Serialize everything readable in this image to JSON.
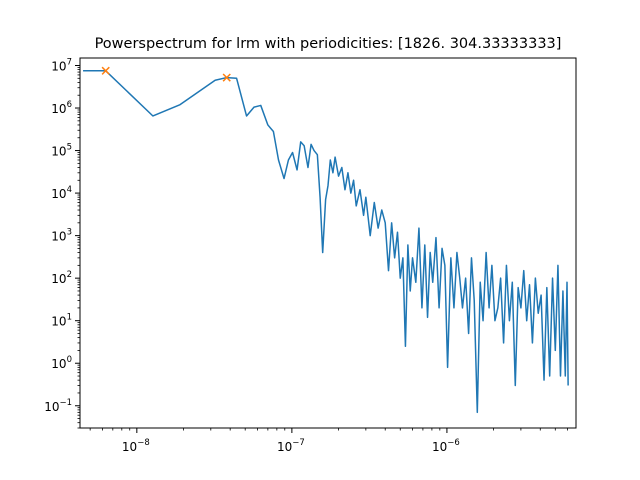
{
  "chart_data": {
    "type": "line",
    "title": "Powerspectrum for lrm with periodicities: [1826.          304.33333333]",
    "xlabel": "",
    "ylabel": "",
    "xscale": "log",
    "yscale": "log",
    "xlim": [
      4.3e-09,
      6.8e-06
    ],
    "ylim": [
      0.03,
      15000000.0
    ],
    "grid": false,
    "x_ticks": [
      {
        "base": "10",
        "exp": "−8",
        "value": 1e-08
      },
      {
        "base": "10",
        "exp": "−7",
        "value": 1e-07
      },
      {
        "base": "10",
        "exp": "−6",
        "value": 1e-06
      }
    ],
    "y_ticks": [
      {
        "base": "10",
        "exp": "7",
        "value": 10000000.0
      },
      {
        "base": "10",
        "exp": "6",
        "value": 1000000.0
      },
      {
        "base": "10",
        "exp": "5",
        "value": 100000.0
      },
      {
        "base": "10",
        "exp": "4",
        "value": 10000.0
      },
      {
        "base": "10",
        "exp": "3",
        "value": 1000.0
      },
      {
        "base": "10",
        "exp": "2",
        "value": 100.0
      },
      {
        "base": "10",
        "exp": "1",
        "value": 10.0
      },
      {
        "base": "10",
        "exp": "0",
        "value": 1
      },
      {
        "base": "10",
        "exp": "−1",
        "value": 0.1
      }
    ],
    "series": [
      {
        "color": "#1f77b4",
        "x": [
          4.5e-09,
          6.3e-09,
          1.27e-08,
          1.9e-08,
          3.2e-08,
          3.8e-08,
          4.4e-08,
          5.1e-08,
          5.7e-08,
          6.3e-08,
          7e-08,
          7.6e-08,
          8.2e-08,
          8.9e-08,
          9.5e-08,
          1.01e-07,
          1.08e-07,
          1.14e-07,
          1.2e-07,
          1.27e-07,
          1.33e-07,
          1.39e-07,
          1.46e-07,
          1.52e-07,
          1.58e-07,
          1.65e-07,
          1.71e-07,
          1.77e-07,
          1.84e-07,
          1.9e-07,
          2e-07,
          2.1e-07,
          2.2e-07,
          2.3e-07,
          2.4e-07,
          2.5e-07,
          2.6e-07,
          2.75e-07,
          2.9e-07,
          3e-07,
          3.2e-07,
          3.4e-07,
          3.6e-07,
          3.8e-07,
          4e-07,
          4.2e-07,
          4.4e-07,
          4.6e-07,
          4.8e-07,
          5e-07,
          5.2e-07,
          5.4e-07,
          5.6e-07,
          5.8e-07,
          6e-07,
          6.3e-07,
          6.6e-07,
          6.9e-07,
          7.2e-07,
          7.5e-07,
          7.8e-07,
          8.1e-07,
          8.5e-07,
          8.9e-07,
          9.3e-07,
          9.7e-07,
          1.01e-06,
          1.06e-06,
          1.11e-06,
          1.16e-06,
          1.21e-06,
          1.26e-06,
          1.32e-06,
          1.38e-06,
          1.44e-06,
          1.5e-06,
          1.57e-06,
          1.64e-06,
          1.71e-06,
          1.79e-06,
          1.87e-06,
          1.95e-06,
          2.04e-06,
          2.13e-06,
          2.22e-06,
          2.32e-06,
          2.42e-06,
          2.53e-06,
          2.64e-06,
          2.76e-06,
          2.88e-06,
          3e-06,
          3.13e-06,
          3.27e-06,
          3.41e-06,
          3.56e-06,
          3.72e-06,
          3.88e-06,
          4.05e-06,
          4.23e-06,
          4.41e-06,
          4.6e-06,
          4.8e-06,
          5e-06,
          5.2e-06,
          5.4e-06,
          5.6e-06,
          5.8e-06,
          5.95e-06,
          6.05e-06
        ],
        "y": [
          7500000.0,
          7500000.0,
          650000.0,
          1200000.0,
          4500000.0,
          5200000.0,
          5000000.0,
          650000.0,
          1050000.0,
          1150000.0,
          400000.0,
          280000.0,
          60000.0,
          22000.0,
          60000.0,
          90000.0,
          35000.0,
          160000.0,
          130000.0,
          40000.0,
          140000.0,
          100000.0,
          80000.0,
          8000.0,
          400.0,
          7000.0,
          15000.0,
          60000.0,
          30000.0,
          70000.0,
          25000.0,
          40000.0,
          12000.0,
          30000.0,
          10000.0,
          20000.0,
          5000.0,
          12000.0,
          3000.0,
          8000.0,
          1000.0,
          6000.0,
          1500.0,
          4000.0,
          2000.0,
          150.0,
          2000.0,
          300.0,
          1200.0,
          100.0,
          300.0,
          2.5,
          600.0,
          50.0,
          300.0,
          80.0,
          1500.0,
          20.0,
          600.0,
          12.0,
          400.0,
          80.0,
          900.0,
          20.0,
          500.0,
          200.0,
          0.8,
          300.0,
          20.0,
          400.0,
          100.0,
          20.0,
          100.0,
          5.0,
          300.0,
          30.0,
          0.07,
          80.0,
          10.0,
          400.0,
          20.0,
          200.0,
          10.0,
          20.0,
          100.0,
          3.0,
          200.0,
          10.0,
          80.0,
          0.3,
          60.0,
          20.0,
          150.0,
          10.0,
          70.0,
          3.0,
          100.0,
          15.0,
          40.0,
          0.4,
          60.0,
          0.5,
          100.0,
          2.0,
          200.0,
          0.5,
          50.0,
          0.5,
          80.0,
          0.3
        ],
        "markers": [
          {
            "x": 6.3e-09,
            "y": 7500000.0
          },
          {
            "x": 3.8e-08,
            "y": 5200000.0
          }
        ],
        "marker_color": "#ff7f0e",
        "marker_shape": "x"
      }
    ]
  }
}
